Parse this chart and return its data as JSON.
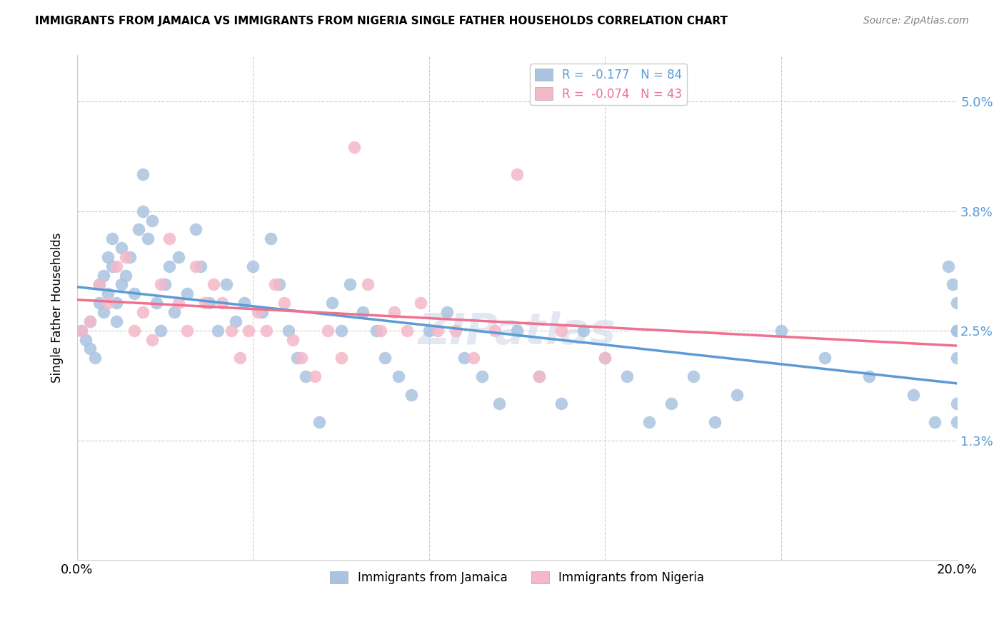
{
  "title": "IMMIGRANTS FROM JAMAICA VS IMMIGRANTS FROM NIGERIA SINGLE FATHER HOUSEHOLDS CORRELATION CHART",
  "source": "Source: ZipAtlas.com",
  "ylabel": "Single Father Households",
  "x_min": 0.0,
  "x_max": 0.2,
  "y_min": 0.0,
  "y_max": 0.055,
  "y_ticks": [
    0.013,
    0.025,
    0.038,
    0.05
  ],
  "y_tick_labels": [
    "1.3%",
    "2.5%",
    "3.8%",
    "5.0%"
  ],
  "x_ticks": [
    0.0,
    0.04,
    0.08,
    0.12,
    0.16,
    0.2
  ],
  "x_tick_labels": [
    "0.0%",
    "",
    "",
    "",
    "",
    "20.0%"
  ],
  "color_jamaica": "#a8c4e0",
  "color_nigeria": "#f4b8c8",
  "line_color_jamaica": "#5b9bd5",
  "line_color_nigeria": "#f07090",
  "bg_color": "#ffffff",
  "grid_color": "#cccccc",
  "jamaica_x": [
    0.001,
    0.002,
    0.003,
    0.003,
    0.004,
    0.005,
    0.005,
    0.006,
    0.006,
    0.007,
    0.007,
    0.008,
    0.008,
    0.009,
    0.009,
    0.01,
    0.01,
    0.011,
    0.012,
    0.013,
    0.014,
    0.015,
    0.015,
    0.016,
    0.017,
    0.018,
    0.019,
    0.02,
    0.021,
    0.022,
    0.023,
    0.025,
    0.027,
    0.028,
    0.03,
    0.032,
    0.034,
    0.036,
    0.038,
    0.04,
    0.042,
    0.044,
    0.046,
    0.048,
    0.05,
    0.052,
    0.055,
    0.058,
    0.06,
    0.062,
    0.065,
    0.068,
    0.07,
    0.073,
    0.076,
    0.08,
    0.084,
    0.088,
    0.092,
    0.096,
    0.1,
    0.105,
    0.11,
    0.115,
    0.12,
    0.125,
    0.13,
    0.135,
    0.14,
    0.145,
    0.15,
    0.16,
    0.17,
    0.18,
    0.19,
    0.195,
    0.198,
    0.199,
    0.2,
    0.2,
    0.2,
    0.2,
    0.2,
    0.2
  ],
  "jamaica_y": [
    0.025,
    0.024,
    0.023,
    0.026,
    0.022,
    0.028,
    0.03,
    0.027,
    0.031,
    0.029,
    0.033,
    0.032,
    0.035,
    0.026,
    0.028,
    0.03,
    0.034,
    0.031,
    0.033,
    0.029,
    0.036,
    0.038,
    0.042,
    0.035,
    0.037,
    0.028,
    0.025,
    0.03,
    0.032,
    0.027,
    0.033,
    0.029,
    0.036,
    0.032,
    0.028,
    0.025,
    0.03,
    0.026,
    0.028,
    0.032,
    0.027,
    0.035,
    0.03,
    0.025,
    0.022,
    0.02,
    0.015,
    0.028,
    0.025,
    0.03,
    0.027,
    0.025,
    0.022,
    0.02,
    0.018,
    0.025,
    0.027,
    0.022,
    0.02,
    0.017,
    0.025,
    0.02,
    0.017,
    0.025,
    0.022,
    0.02,
    0.015,
    0.017,
    0.02,
    0.015,
    0.018,
    0.025,
    0.022,
    0.02,
    0.018,
    0.015,
    0.032,
    0.03,
    0.022,
    0.025,
    0.028,
    0.017,
    0.015,
    0.025
  ],
  "nigeria_x": [
    0.001,
    0.003,
    0.005,
    0.007,
    0.009,
    0.011,
    0.013,
    0.015,
    0.017,
    0.019,
    0.021,
    0.023,
    0.025,
    0.027,
    0.029,
    0.031,
    0.033,
    0.035,
    0.037,
    0.039,
    0.041,
    0.043,
    0.045,
    0.047,
    0.049,
    0.051,
    0.054,
    0.057,
    0.06,
    0.063,
    0.066,
    0.069,
    0.072,
    0.075,
    0.078,
    0.082,
    0.086,
    0.09,
    0.095,
    0.1,
    0.105,
    0.11,
    0.12
  ],
  "nigeria_y": [
    0.025,
    0.026,
    0.03,
    0.028,
    0.032,
    0.033,
    0.025,
    0.027,
    0.024,
    0.03,
    0.035,
    0.028,
    0.025,
    0.032,
    0.028,
    0.03,
    0.028,
    0.025,
    0.022,
    0.025,
    0.027,
    0.025,
    0.03,
    0.028,
    0.024,
    0.022,
    0.02,
    0.025,
    0.022,
    0.045,
    0.03,
    0.025,
    0.027,
    0.025,
    0.028,
    0.025,
    0.025,
    0.022,
    0.025,
    0.042,
    0.02,
    0.025,
    0.022
  ]
}
